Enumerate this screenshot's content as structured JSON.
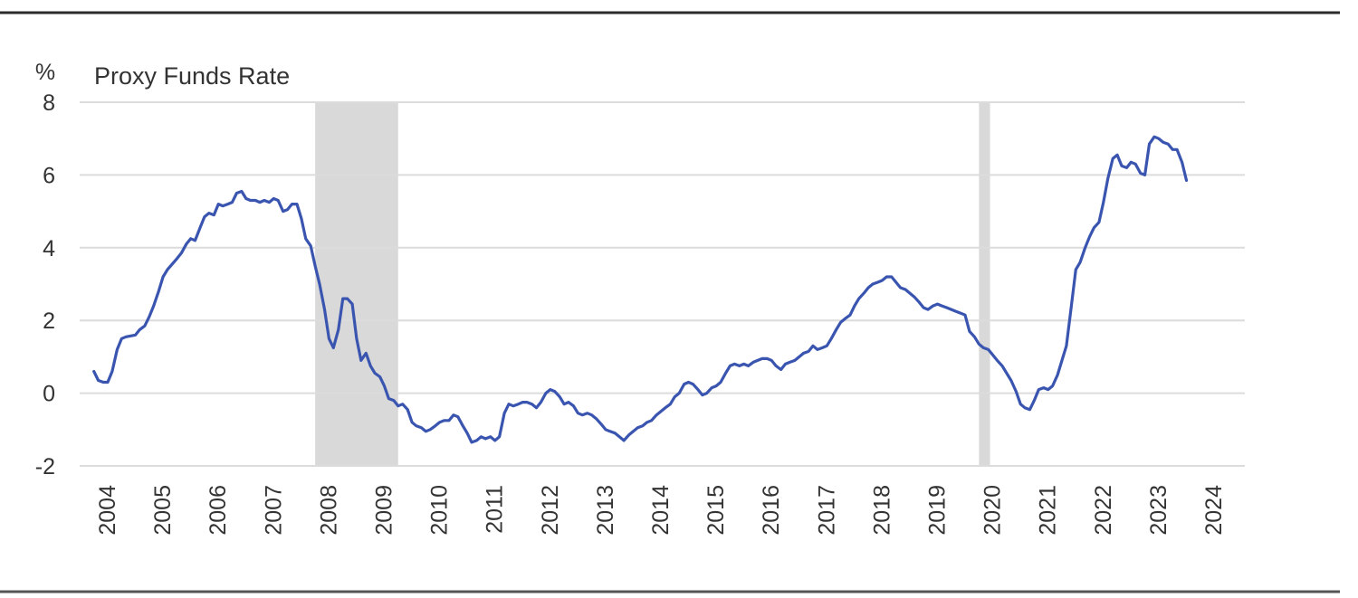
{
  "chart_data": {
    "type": "line",
    "title": "Proxy Funds Rate",
    "ylabel": "%",
    "xlabel": "",
    "ylim": [
      -2,
      8
    ],
    "xlim": [
      2003.7,
      2024.5
    ],
    "y_ticks": [
      "8",
      "6",
      "4",
      "2",
      "0",
      "-2"
    ],
    "x_ticks": [
      "2004",
      "2005",
      "2006",
      "2007",
      "2008",
      "2009",
      "2010",
      "2011",
      "2012",
      "2013",
      "2014",
      "2015",
      "2016",
      "2017",
      "2018",
      "2019",
      "2020",
      "2021",
      "2022",
      "2023",
      "2024"
    ],
    "grid": true,
    "legend": "none",
    "line_color": "#3a55b0",
    "shade_color": "#d9d9d9",
    "recession_shading": [
      {
        "start": 2007.75,
        "end": 2009.25
      },
      {
        "start": 2019.75,
        "end": 2019.95
      }
    ],
    "series": [
      {
        "values_xy": [
          [
            2003.75,
            0.6
          ],
          [
            2003.83,
            0.35
          ],
          [
            2003.92,
            0.3
          ],
          [
            2004.0,
            0.3
          ],
          [
            2004.08,
            0.6
          ],
          [
            2004.17,
            1.2
          ],
          [
            2004.25,
            1.5
          ],
          [
            2004.33,
            1.55
          ],
          [
            2004.5,
            1.6
          ],
          [
            2004.58,
            1.75
          ],
          [
            2004.67,
            1.85
          ],
          [
            2004.75,
            2.1
          ],
          [
            2004.83,
            2.4
          ],
          [
            2004.92,
            2.8
          ],
          [
            2005.0,
            3.2
          ],
          [
            2005.08,
            3.4
          ],
          [
            2005.25,
            3.7
          ],
          [
            2005.33,
            3.85
          ],
          [
            2005.42,
            4.1
          ],
          [
            2005.5,
            4.25
          ],
          [
            2005.58,
            4.2
          ],
          [
            2005.67,
            4.55
          ],
          [
            2005.75,
            4.85
          ],
          [
            2005.83,
            4.95
          ],
          [
            2005.92,
            4.9
          ],
          [
            2006.0,
            5.2
          ],
          [
            2006.08,
            5.15
          ],
          [
            2006.17,
            5.2
          ],
          [
            2006.25,
            5.25
          ],
          [
            2006.33,
            5.5
          ],
          [
            2006.42,
            5.55
          ],
          [
            2006.5,
            5.35
          ],
          [
            2006.58,
            5.3
          ],
          [
            2006.67,
            5.3
          ],
          [
            2006.75,
            5.25
          ],
          [
            2006.83,
            5.3
          ],
          [
            2006.92,
            5.25
          ],
          [
            2007.0,
            5.35
          ],
          [
            2007.08,
            5.3
          ],
          [
            2007.17,
            5.0
          ],
          [
            2007.25,
            5.05
          ],
          [
            2007.33,
            5.2
          ],
          [
            2007.42,
            5.2
          ],
          [
            2007.5,
            4.8
          ],
          [
            2007.58,
            4.25
          ],
          [
            2007.67,
            4.05
          ],
          [
            2007.75,
            3.5
          ],
          [
            2007.83,
            3.0
          ],
          [
            2007.92,
            2.3
          ],
          [
            2008.0,
            1.5
          ],
          [
            2008.08,
            1.25
          ],
          [
            2008.17,
            1.75
          ],
          [
            2008.25,
            2.6
          ],
          [
            2008.33,
            2.6
          ],
          [
            2008.42,
            2.45
          ],
          [
            2008.5,
            1.5
          ],
          [
            2008.58,
            0.9
          ],
          [
            2008.67,
            1.1
          ],
          [
            2008.75,
            0.75
          ],
          [
            2008.83,
            0.55
          ],
          [
            2008.92,
            0.45
          ],
          [
            2009.0,
            0.2
          ],
          [
            2009.08,
            -0.15
          ],
          [
            2009.17,
            -0.2
          ],
          [
            2009.25,
            -0.35
          ],
          [
            2009.33,
            -0.3
          ],
          [
            2009.42,
            -0.45
          ],
          [
            2009.5,
            -0.8
          ],
          [
            2009.58,
            -0.9
          ],
          [
            2009.67,
            -0.95
          ],
          [
            2009.75,
            -1.05
          ],
          [
            2009.83,
            -1.0
          ],
          [
            2009.92,
            -0.9
          ],
          [
            2010.0,
            -0.8
          ],
          [
            2010.08,
            -0.75
          ],
          [
            2010.17,
            -0.75
          ],
          [
            2010.25,
            -0.6
          ],
          [
            2010.33,
            -0.65
          ],
          [
            2010.42,
            -0.9
          ],
          [
            2010.5,
            -1.1
          ],
          [
            2010.58,
            -1.35
          ],
          [
            2010.67,
            -1.3
          ],
          [
            2010.75,
            -1.2
          ],
          [
            2010.83,
            -1.25
          ],
          [
            2010.92,
            -1.2
          ],
          [
            2011.0,
            -1.3
          ],
          [
            2011.08,
            -1.2
          ],
          [
            2011.17,
            -0.55
          ],
          [
            2011.25,
            -0.3
          ],
          [
            2011.33,
            -0.35
          ],
          [
            2011.42,
            -0.3
          ],
          [
            2011.5,
            -0.25
          ],
          [
            2011.58,
            -0.25
          ],
          [
            2011.67,
            -0.3
          ],
          [
            2011.75,
            -0.4
          ],
          [
            2011.83,
            -0.25
          ],
          [
            2011.92,
            0.0
          ],
          [
            2012.0,
            0.1
          ],
          [
            2012.08,
            0.05
          ],
          [
            2012.17,
            -0.1
          ],
          [
            2012.25,
            -0.3
          ],
          [
            2012.33,
            -0.25
          ],
          [
            2012.42,
            -0.35
          ],
          [
            2012.5,
            -0.55
          ],
          [
            2012.58,
            -0.6
          ],
          [
            2012.67,
            -0.55
          ],
          [
            2012.75,
            -0.6
          ],
          [
            2012.83,
            -0.7
          ],
          [
            2012.92,
            -0.85
          ],
          [
            2013.0,
            -1.0
          ],
          [
            2013.08,
            -1.05
          ],
          [
            2013.17,
            -1.1
          ],
          [
            2013.25,
            -1.2
          ],
          [
            2013.33,
            -1.3
          ],
          [
            2013.42,
            -1.15
          ],
          [
            2013.5,
            -1.05
          ],
          [
            2013.58,
            -0.95
          ],
          [
            2013.67,
            -0.9
          ],
          [
            2013.75,
            -0.8
          ],
          [
            2013.83,
            -0.75
          ],
          [
            2013.92,
            -0.6
          ],
          [
            2014.0,
            -0.5
          ],
          [
            2014.08,
            -0.4
          ],
          [
            2014.17,
            -0.3
          ],
          [
            2014.25,
            -0.1
          ],
          [
            2014.33,
            0.0
          ],
          [
            2014.42,
            0.25
          ],
          [
            2014.5,
            0.3
          ],
          [
            2014.58,
            0.25
          ],
          [
            2014.67,
            0.1
          ],
          [
            2014.75,
            -0.05
          ],
          [
            2014.83,
            0.0
          ],
          [
            2014.92,
            0.15
          ],
          [
            2015.0,
            0.2
          ],
          [
            2015.08,
            0.3
          ],
          [
            2015.17,
            0.55
          ],
          [
            2015.25,
            0.75
          ],
          [
            2015.33,
            0.8
          ],
          [
            2015.42,
            0.75
          ],
          [
            2015.5,
            0.8
          ],
          [
            2015.58,
            0.75
          ],
          [
            2015.67,
            0.85
          ],
          [
            2015.75,
            0.9
          ],
          [
            2015.83,
            0.95
          ],
          [
            2015.92,
            0.95
          ],
          [
            2016.0,
            0.9
          ],
          [
            2016.08,
            0.75
          ],
          [
            2016.17,
            0.65
          ],
          [
            2016.25,
            0.8
          ],
          [
            2016.33,
            0.85
          ],
          [
            2016.42,
            0.9
          ],
          [
            2016.5,
            1.0
          ],
          [
            2016.58,
            1.1
          ],
          [
            2016.67,
            1.15
          ],
          [
            2016.75,
            1.3
          ],
          [
            2016.83,
            1.2
          ],
          [
            2016.92,
            1.25
          ],
          [
            2017.0,
            1.3
          ],
          [
            2017.08,
            1.5
          ],
          [
            2017.17,
            1.75
          ],
          [
            2017.25,
            1.95
          ],
          [
            2017.33,
            2.05
          ],
          [
            2017.42,
            2.15
          ],
          [
            2017.5,
            2.4
          ],
          [
            2017.58,
            2.6
          ],
          [
            2017.67,
            2.75
          ],
          [
            2017.75,
            2.9
          ],
          [
            2017.83,
            3.0
          ],
          [
            2017.92,
            3.05
          ],
          [
            2018.0,
            3.1
          ],
          [
            2018.08,
            3.2
          ],
          [
            2018.17,
            3.2
          ],
          [
            2018.25,
            3.05
          ],
          [
            2018.33,
            2.9
          ],
          [
            2018.42,
            2.85
          ],
          [
            2018.5,
            2.75
          ],
          [
            2018.58,
            2.65
          ],
          [
            2018.67,
            2.5
          ],
          [
            2018.75,
            2.35
          ],
          [
            2018.83,
            2.3
          ],
          [
            2018.92,
            2.4
          ],
          [
            2019.0,
            2.45
          ],
          [
            2019.08,
            2.4
          ],
          [
            2019.17,
            2.35
          ],
          [
            2019.25,
            2.3
          ],
          [
            2019.33,
            2.25
          ],
          [
            2019.42,
            2.2
          ],
          [
            2019.5,
            2.15
          ],
          [
            2019.58,
            1.7
          ],
          [
            2019.67,
            1.55
          ],
          [
            2019.75,
            1.35
          ],
          [
            2019.83,
            1.25
          ],
          [
            2019.92,
            1.2
          ],
          [
            2020.0,
            1.05
          ],
          [
            2020.08,
            0.9
          ],
          [
            2020.17,
            0.75
          ],
          [
            2020.25,
            0.55
          ],
          [
            2020.33,
            0.35
          ],
          [
            2020.42,
            0.05
          ],
          [
            2020.5,
            -0.3
          ],
          [
            2020.58,
            -0.4
          ],
          [
            2020.67,
            -0.45
          ],
          [
            2020.75,
            -0.2
          ],
          [
            2020.83,
            0.1
          ],
          [
            2020.92,
            0.15
          ],
          [
            2021.0,
            0.1
          ],
          [
            2021.08,
            0.2
          ],
          [
            2021.17,
            0.5
          ],
          [
            2021.25,
            0.9
          ],
          [
            2021.33,
            1.3
          ],
          [
            2021.42,
            2.4
          ],
          [
            2021.5,
            3.4
          ],
          [
            2021.58,
            3.6
          ],
          [
            2021.67,
            4.0
          ],
          [
            2021.75,
            4.3
          ],
          [
            2021.83,
            4.55
          ],
          [
            2021.92,
            4.7
          ],
          [
            2022.0,
            5.25
          ],
          [
            2022.08,
            5.9
          ],
          [
            2022.17,
            6.45
          ],
          [
            2022.25,
            6.55
          ],
          [
            2022.33,
            6.25
          ],
          [
            2022.42,
            6.2
          ],
          [
            2022.5,
            6.35
          ],
          [
            2022.58,
            6.3
          ],
          [
            2022.67,
            6.05
          ],
          [
            2022.75,
            6.0
          ],
          [
            2022.83,
            6.85
          ],
          [
            2022.92,
            7.05
          ],
          [
            2023.0,
            7.0
          ],
          [
            2023.08,
            6.9
          ],
          [
            2023.17,
            6.85
          ],
          [
            2023.25,
            6.7
          ],
          [
            2023.33,
            6.7
          ],
          [
            2023.42,
            6.35
          ],
          [
            2023.5,
            5.85
          ]
        ]
      }
    ]
  }
}
